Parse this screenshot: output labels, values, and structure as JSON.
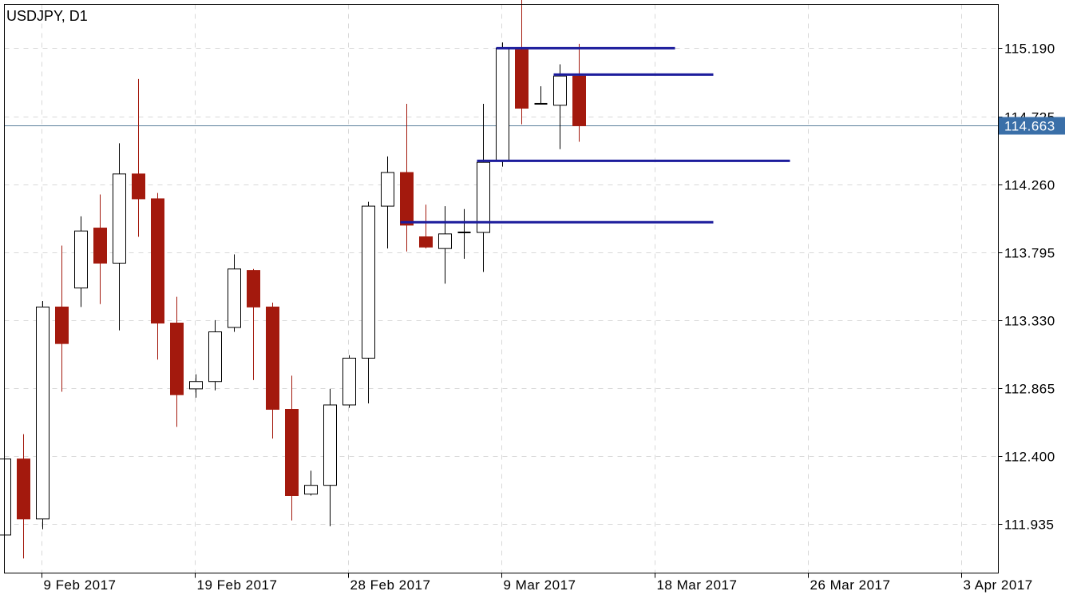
{
  "chart_data": {
    "type": "candlestick",
    "title": "USDJPY, D1",
    "y_ticks": [
      "115.190",
      "114.725",
      "114.260",
      "113.795",
      "113.330",
      "112.865",
      "112.400",
      "111.935"
    ],
    "ylim": [
      111.6,
      115.49
    ],
    "x_tick_labels": [
      "9 Feb 2017",
      "19 Feb 2017",
      "28 Feb 2017",
      "9 Mar 2017",
      "18 Mar 2017",
      "26 Mar 2017",
      "3 Apr 2017"
    ],
    "current_price": "114.663",
    "grid": true,
    "candles": [
      {
        "o": 111.86,
        "h": 112.38,
        "l": 111.86,
        "c": 112.38
      },
      {
        "o": 112.38,
        "h": 112.55,
        "l": 111.7,
        "c": 111.97
      },
      {
        "o": 111.97,
        "h": 113.46,
        "l": 111.9,
        "c": 113.42
      },
      {
        "o": 113.42,
        "h": 113.84,
        "l": 112.84,
        "c": 113.17
      },
      {
        "o": 113.55,
        "h": 114.04,
        "l": 113.42,
        "c": 113.94
      },
      {
        "o": 113.96,
        "h": 114.19,
        "l": 113.44,
        "c": 113.72
      },
      {
        "o": 113.72,
        "h": 114.54,
        "l": 113.26,
        "c": 114.33
      },
      {
        "o": 114.33,
        "h": 114.98,
        "l": 113.9,
        "c": 114.16
      },
      {
        "o": 114.16,
        "h": 114.2,
        "l": 113.06,
        "c": 113.31
      },
      {
        "o": 113.31,
        "h": 113.49,
        "l": 112.6,
        "c": 112.82
      },
      {
        "o": 112.86,
        "h": 112.96,
        "l": 112.8,
        "c": 112.91
      },
      {
        "o": 112.91,
        "h": 113.33,
        "l": 112.85,
        "c": 113.25
      },
      {
        "o": 113.28,
        "h": 113.78,
        "l": 113.25,
        "c": 113.68
      },
      {
        "o": 113.67,
        "h": 113.68,
        "l": 112.92,
        "c": 113.42
      },
      {
        "o": 113.42,
        "h": 113.45,
        "l": 112.52,
        "c": 112.72
      },
      {
        "o": 112.72,
        "h": 112.95,
        "l": 111.96,
        "c": 112.13
      },
      {
        "o": 112.14,
        "h": 112.3,
        "l": 112.13,
        "c": 112.2
      },
      {
        "o": 112.2,
        "h": 112.86,
        "l": 111.92,
        "c": 112.75
      },
      {
        "o": 112.75,
        "h": 113.09,
        "l": 112.73,
        "c": 113.07
      },
      {
        "o": 113.07,
        "h": 114.14,
        "l": 112.76,
        "c": 114.11
      },
      {
        "o": 114.11,
        "h": 114.45,
        "l": 113.82,
        "c": 114.34
      },
      {
        "o": 114.34,
        "h": 114.81,
        "l": 113.8,
        "c": 113.98
      },
      {
        "o": 113.9,
        "h": 114.12,
        "l": 113.82,
        "c": 113.83
      },
      {
        "o": 113.82,
        "h": 114.11,
        "l": 113.58,
        "c": 113.92
      },
      {
        "o": 113.93,
        "h": 114.09,
        "l": 113.75,
        "c": 113.93
      },
      {
        "o": 113.93,
        "h": 114.81,
        "l": 113.66,
        "c": 114.41
      },
      {
        "o": 114.42,
        "h": 115.23,
        "l": 114.38,
        "c": 115.19
      },
      {
        "o": 115.18,
        "h": 115.57,
        "l": 114.67,
        "c": 114.78
      },
      {
        "o": 114.81,
        "h": 114.93,
        "l": 114.81,
        "c": 114.81
      },
      {
        "o": 114.8,
        "h": 115.08,
        "l": 114.5,
        "c": 115.0
      },
      {
        "o": 115.0,
        "h": 115.22,
        "l": 114.55,
        "c": 114.66
      }
    ],
    "levels": [
      {
        "from": 26,
        "to": 35,
        "y": 115.19
      },
      {
        "from": 29,
        "to": 37,
        "y": 115.01
      },
      {
        "from": 25,
        "to": 41,
        "y": 114.42
      },
      {
        "from": 21,
        "to": 37,
        "y": 114.0
      }
    ]
  },
  "colors": {
    "bear_fill": "#a3190d",
    "bull_fill": "#ffffff",
    "candle_stroke": "#000000",
    "level_line": "#1c1c9c",
    "price_line": "#5a7f9a",
    "price_badge": "#3a6fa8",
    "grid": "#d8d8d8"
  }
}
